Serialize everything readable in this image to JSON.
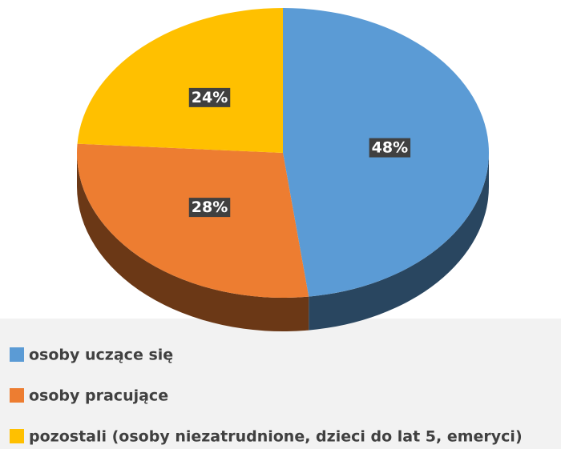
{
  "chart_data": {
    "type": "pie3d",
    "categories": [
      "osoby uczące się",
      "osoby pracujące",
      "pozostali (osoby niezatrudnione, dzieci do lat 5, emeryci)"
    ],
    "values": [
      48,
      28,
      24
    ],
    "value_labels": [
      "48%",
      "28%",
      "24%"
    ],
    "colors": [
      "#5b9bd5",
      "#ed7d31",
      "#ffc000"
    ],
    "legend": "bottom"
  }
}
